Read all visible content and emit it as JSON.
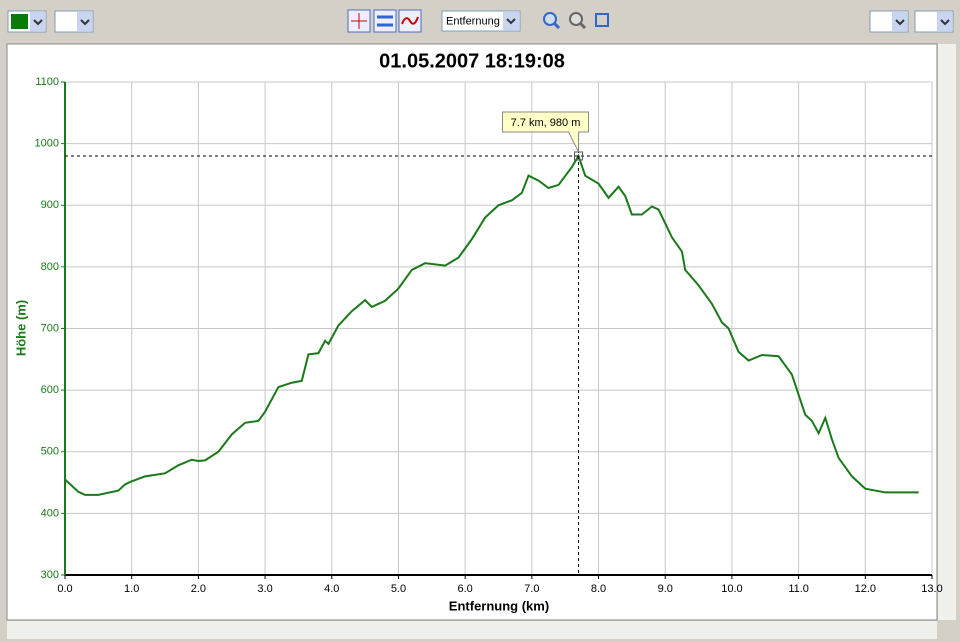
{
  "toolbar": {
    "mode": "Entfernung"
  },
  "chart_data": {
    "type": "line",
    "title": "01.05.2007 18:19:08",
    "x_label": "Entfernung (km)",
    "y_label": "Höhe (m)",
    "color": "#1a7a1a",
    "x": [
      0.0,
      0.1,
      0.2,
      0.3,
      0.5,
      0.8,
      0.9,
      1.0,
      1.2,
      1.5,
      1.7,
      1.9,
      2.0,
      2.1,
      2.3,
      2.5,
      2.7,
      2.9,
      3.0,
      3.2,
      3.4,
      3.55,
      3.65,
      3.8,
      3.9,
      3.95,
      4.1,
      4.3,
      4.5,
      4.6,
      4.8,
      5.0,
      5.2,
      5.4,
      5.7,
      5.9,
      6.1,
      6.3,
      6.5,
      6.7,
      6.85,
      6.95,
      7.1,
      7.25,
      7.4,
      7.6,
      7.7,
      7.8,
      8.0,
      8.15,
      8.3,
      8.4,
      8.5,
      8.65,
      8.8,
      8.9,
      9.1,
      9.25,
      9.3,
      9.5,
      9.7,
      9.85,
      9.95,
      10.1,
      10.25,
      10.45,
      10.7,
      10.9,
      11.1,
      11.2,
      11.3,
      11.4,
      11.5,
      11.6,
      11.8,
      12.0,
      12.3,
      12.8
    ],
    "values": [
      455,
      445,
      435,
      430,
      430,
      437,
      447,
      452,
      460,
      465,
      478,
      487,
      485,
      486,
      500,
      528,
      547,
      550,
      565,
      605,
      612,
      615,
      658,
      660,
      680,
      675,
      705,
      728,
      746,
      735,
      745,
      765,
      795,
      806,
      802,
      815,
      845,
      880,
      900,
      908,
      920,
      948,
      940,
      928,
      933,
      962,
      980,
      948,
      935,
      912,
      930,
      915,
      885,
      885,
      898,
      893,
      848,
      825,
      795,
      770,
      740,
      710,
      700,
      662,
      648,
      657,
      655,
      625,
      560,
      550,
      530,
      555,
      520,
      490,
      460,
      440,
      434,
      434
    ],
    "xlim": [
      0,
      13
    ],
    "xticks": [
      {
        "value": 0,
        "label": "0.0"
      },
      {
        "value": 1,
        "label": "1.0"
      },
      {
        "value": 2,
        "label": "2.0"
      },
      {
        "value": 3,
        "label": "3.0"
      },
      {
        "value": 4,
        "label": "4.0"
      },
      {
        "value": 5,
        "label": "5.0"
      },
      {
        "value": 6,
        "label": "6.0"
      },
      {
        "value": 7,
        "label": "7.0"
      },
      {
        "value": 8,
        "label": "8.0"
      },
      {
        "value": 9,
        "label": "9.0"
      },
      {
        "value": 10,
        "label": "10.0"
      },
      {
        "value": 11,
        "label": "11.0"
      },
      {
        "value": 12,
        "label": "12.0"
      },
      {
        "value": 13,
        "label": "13.0"
      }
    ],
    "ylim": [
      300,
      1100
    ],
    "yticks": [
      300,
      400,
      500,
      600,
      700,
      800,
      900,
      1000,
      1100
    ],
    "grid": true,
    "annotation": {
      "text": "7.7 km, 980 m",
      "x": 7.7,
      "y": 980
    }
  }
}
